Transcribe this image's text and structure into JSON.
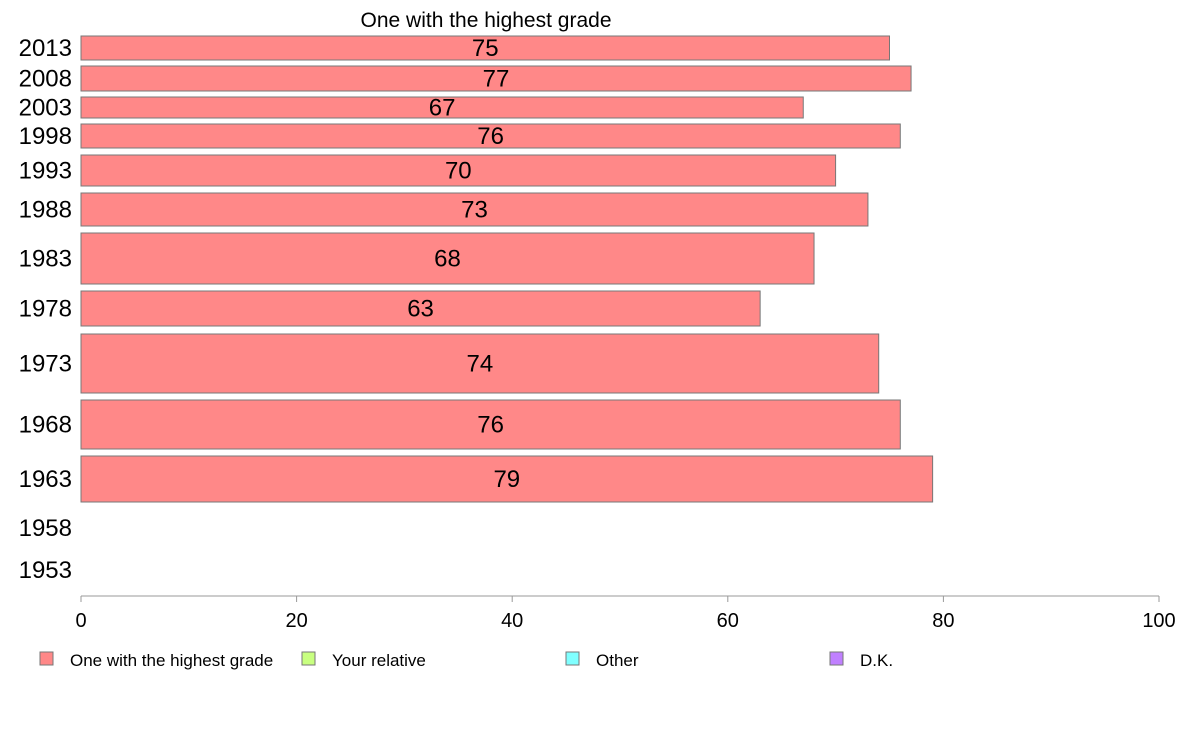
{
  "chart_data": {
    "type": "bar",
    "orientation": "horizontal",
    "title": "One with the highest grade",
    "categories": [
      "2013",
      "2008",
      "2003",
      "1998",
      "1993",
      "1988",
      "1983",
      "1978",
      "1973",
      "1968",
      "1963",
      "1958",
      "1953"
    ],
    "series": [
      {
        "name": "One with the highest grade",
        "color": "#ff8888",
        "values": [
          75,
          77,
          67,
          76,
          70,
          73,
          68,
          63,
          74,
          76,
          79,
          null,
          null
        ]
      }
    ],
    "xlim": [
      0,
      100
    ],
    "xticks": [
      0,
      20,
      40,
      60,
      80,
      100
    ],
    "grid": false,
    "legend_position": "bottom",
    "legend": [
      {
        "label": "One with the highest grade",
        "color": "#ff8888"
      },
      {
        "label": "Your relative",
        "color": "#c8ff80"
      },
      {
        "label": "Other",
        "color": "#80ffff"
      },
      {
        "label": "D.K.",
        "color": "#c080ff"
      }
    ]
  }
}
